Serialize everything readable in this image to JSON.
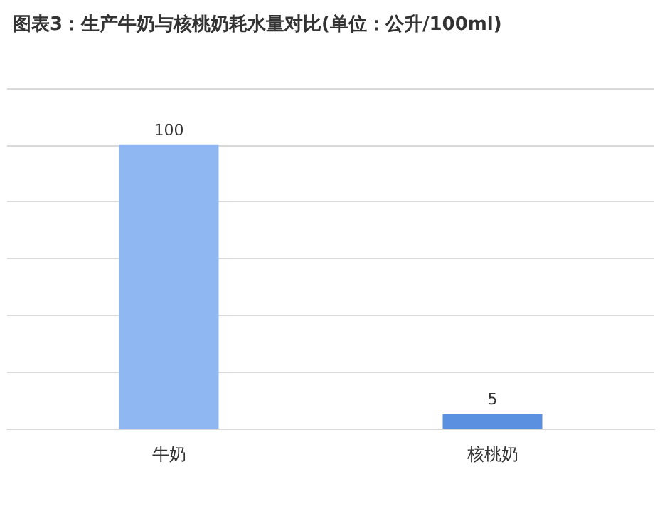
{
  "chart_data": {
    "type": "bar",
    "title": "图表3：生产牛奶与核桃奶耗水量对比(单位：公升/100ml)",
    "categories": [
      "牛奶",
      "核桃奶"
    ],
    "values": [
      100,
      5
    ],
    "colors": [
      "#8fb8f2",
      "#5b8fe0"
    ],
    "ylim": [
      0,
      120
    ],
    "yticks": [
      {
        "value": 0,
        "label": null
      },
      {
        "value": 20,
        "label": null
      },
      {
        "value": 40,
        "label": null
      },
      {
        "value": 60,
        "label": null
      },
      {
        "value": 80,
        "label": null
      },
      {
        "value": 100,
        "label": null
      },
      {
        "value": 120,
        "label": null
      }
    ],
    "grid": "y",
    "tick_labels": "x",
    "data_labels": true
  }
}
